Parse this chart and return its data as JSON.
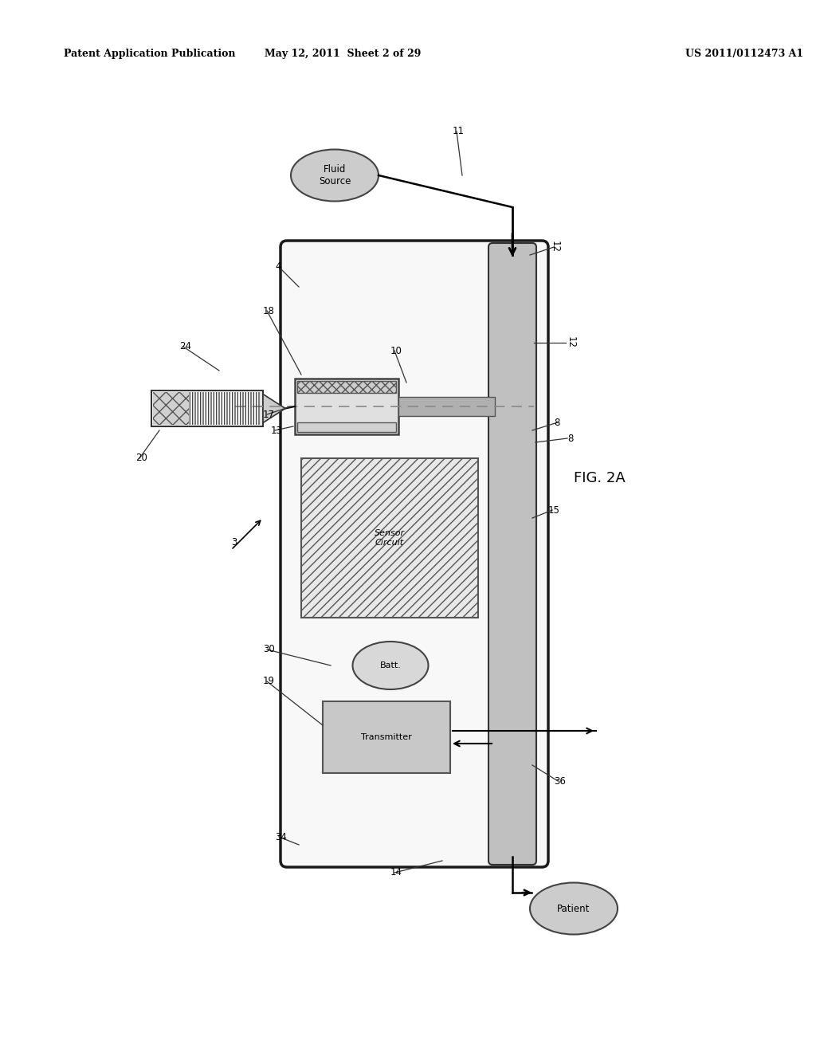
{
  "bg_color": "#ffffff",
  "header_left": "Patent Application Publication",
  "header_mid": "May 12, 2011  Sheet 2 of 29",
  "header_right": "US 2011/0112473 A1",
  "fig_label": "FIG. 2A",
  "colors": {
    "device_fill": "#f8f8f8",
    "device_border": "#1a1a1a",
    "strip_fill": "#c0c0c0",
    "strip_border": "#333333",
    "sensor_fill": "#e8e8e8",
    "batt_fill": "#d8d8d8",
    "tx_fill": "#c8c8c8",
    "ellipse_fill": "#cccccc",
    "needle_fill": "#b8b8b8",
    "port_fill": "#d8d8d8"
  }
}
